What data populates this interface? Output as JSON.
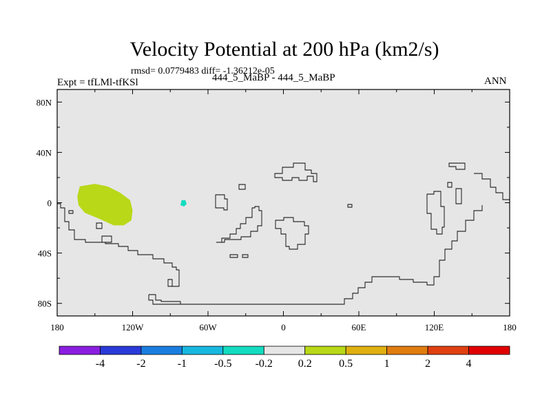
{
  "chart_data": {
    "type": "contour-map",
    "title": "Velocity Potential at 200 hPa (km2/s)",
    "stats": "rmsd= 0.0779483 diff= -1.36212e-05",
    "left_label": "Expt = tfLMl-tfKSl",
    "center_label": "444_5_MaBP - 444_5_MaBP",
    "right_label": "ANN",
    "background_color": "#e6e6e6",
    "xlim": [
      -180,
      180
    ],
    "ylim": [
      -90,
      90
    ],
    "x_ticks": [
      {
        "value": -180,
        "label": "180"
      },
      {
        "value": -120,
        "label": "120W"
      },
      {
        "value": -60,
        "label": "60W"
      },
      {
        "value": 0,
        "label": "0"
      },
      {
        "value": 60,
        "label": "60E"
      },
      {
        "value": 120,
        "label": "120E"
      },
      {
        "value": 180,
        "label": "180"
      }
    ],
    "y_ticks": [
      {
        "value": 80,
        "label": "80N"
      },
      {
        "value": 40,
        "label": "40N"
      },
      {
        "value": 0,
        "label": "0"
      },
      {
        "value": -40,
        "label": "40S"
      },
      {
        "value": -80,
        "label": "80S"
      }
    ],
    "colorbar": {
      "colors": [
        "#8a1ee0",
        "#2a3ad8",
        "#1a7ee0",
        "#17b8e0",
        "#13dcc0",
        "#e6e6e6",
        "#b8d818",
        "#e0b010",
        "#e07c10",
        "#e04010",
        "#e00000"
      ],
      "labels": [
        "-4",
        "-2",
        "-1",
        "-0.5",
        "-0.2",
        "0.2",
        "0.5",
        "1",
        "2",
        "4"
      ]
    },
    "shaded_regions": [
      {
        "name": "positive-anomaly-eastern-pacific",
        "value_range": "0.2 to 0.5",
        "color": "#b8d818",
        "lonlat": [
          [
            -162,
            13
          ],
          [
            -150,
            15
          ],
          [
            -140,
            13
          ],
          [
            -130,
            8
          ],
          [
            -122,
            2
          ],
          [
            -120,
            -6
          ],
          [
            -121,
            -14
          ],
          [
            -127,
            -18
          ],
          [
            -135,
            -18
          ],
          [
            -146,
            -13
          ],
          [
            -158,
            -8
          ],
          [
            -163,
            -2
          ],
          [
            -164,
            5
          ]
        ]
      },
      {
        "name": "negative-anomaly-central-america",
        "value_range": "-0.5 to -0.2",
        "color": "#13dcc0",
        "lonlat": [
          [
            -81,
            2
          ],
          [
            -78,
            2
          ],
          [
            -77,
            -1
          ],
          [
            -79,
            -3
          ],
          [
            -82,
            -2
          ]
        ]
      }
    ]
  }
}
